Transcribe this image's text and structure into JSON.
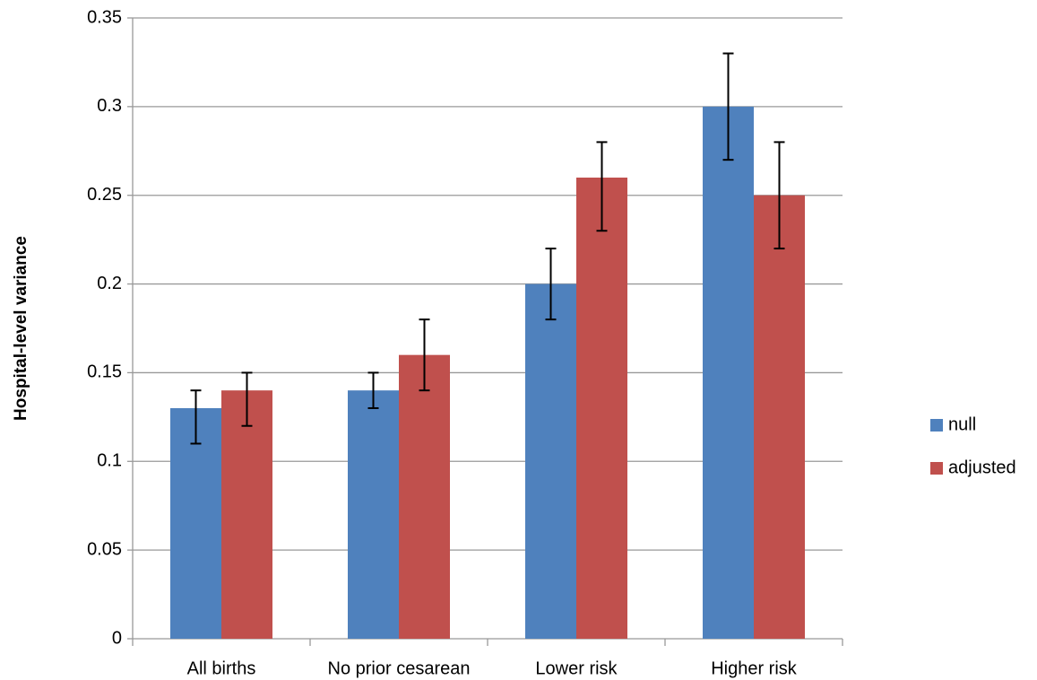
{
  "chart_data": {
    "type": "bar",
    "y_label": "Hospital-level variance",
    "categories": [
      "All births",
      "No prior cesarean",
      "Lower risk",
      "Higher risk"
    ],
    "series": [
      {
        "name": "null",
        "color": "#4f81bd",
        "values": [
          0.13,
          0.14,
          0.2,
          0.3
        ],
        "lower": [
          0.11,
          0.13,
          0.18,
          0.27
        ],
        "upper": [
          0.14,
          0.15,
          0.22,
          0.33
        ]
      },
      {
        "name": "adjusted",
        "color": "#c0504d",
        "values": [
          0.14,
          0.16,
          0.26,
          0.25
        ],
        "lower": [
          0.12,
          0.14,
          0.23,
          0.22
        ],
        "upper": [
          0.15,
          0.18,
          0.28,
          0.28
        ]
      }
    ],
    "ylim": [
      0,
      0.35
    ],
    "yticks": [
      0,
      0.05,
      0.1,
      0.15,
      0.2,
      0.25,
      0.3,
      0.35
    ],
    "grid": true,
    "legend": "right"
  }
}
